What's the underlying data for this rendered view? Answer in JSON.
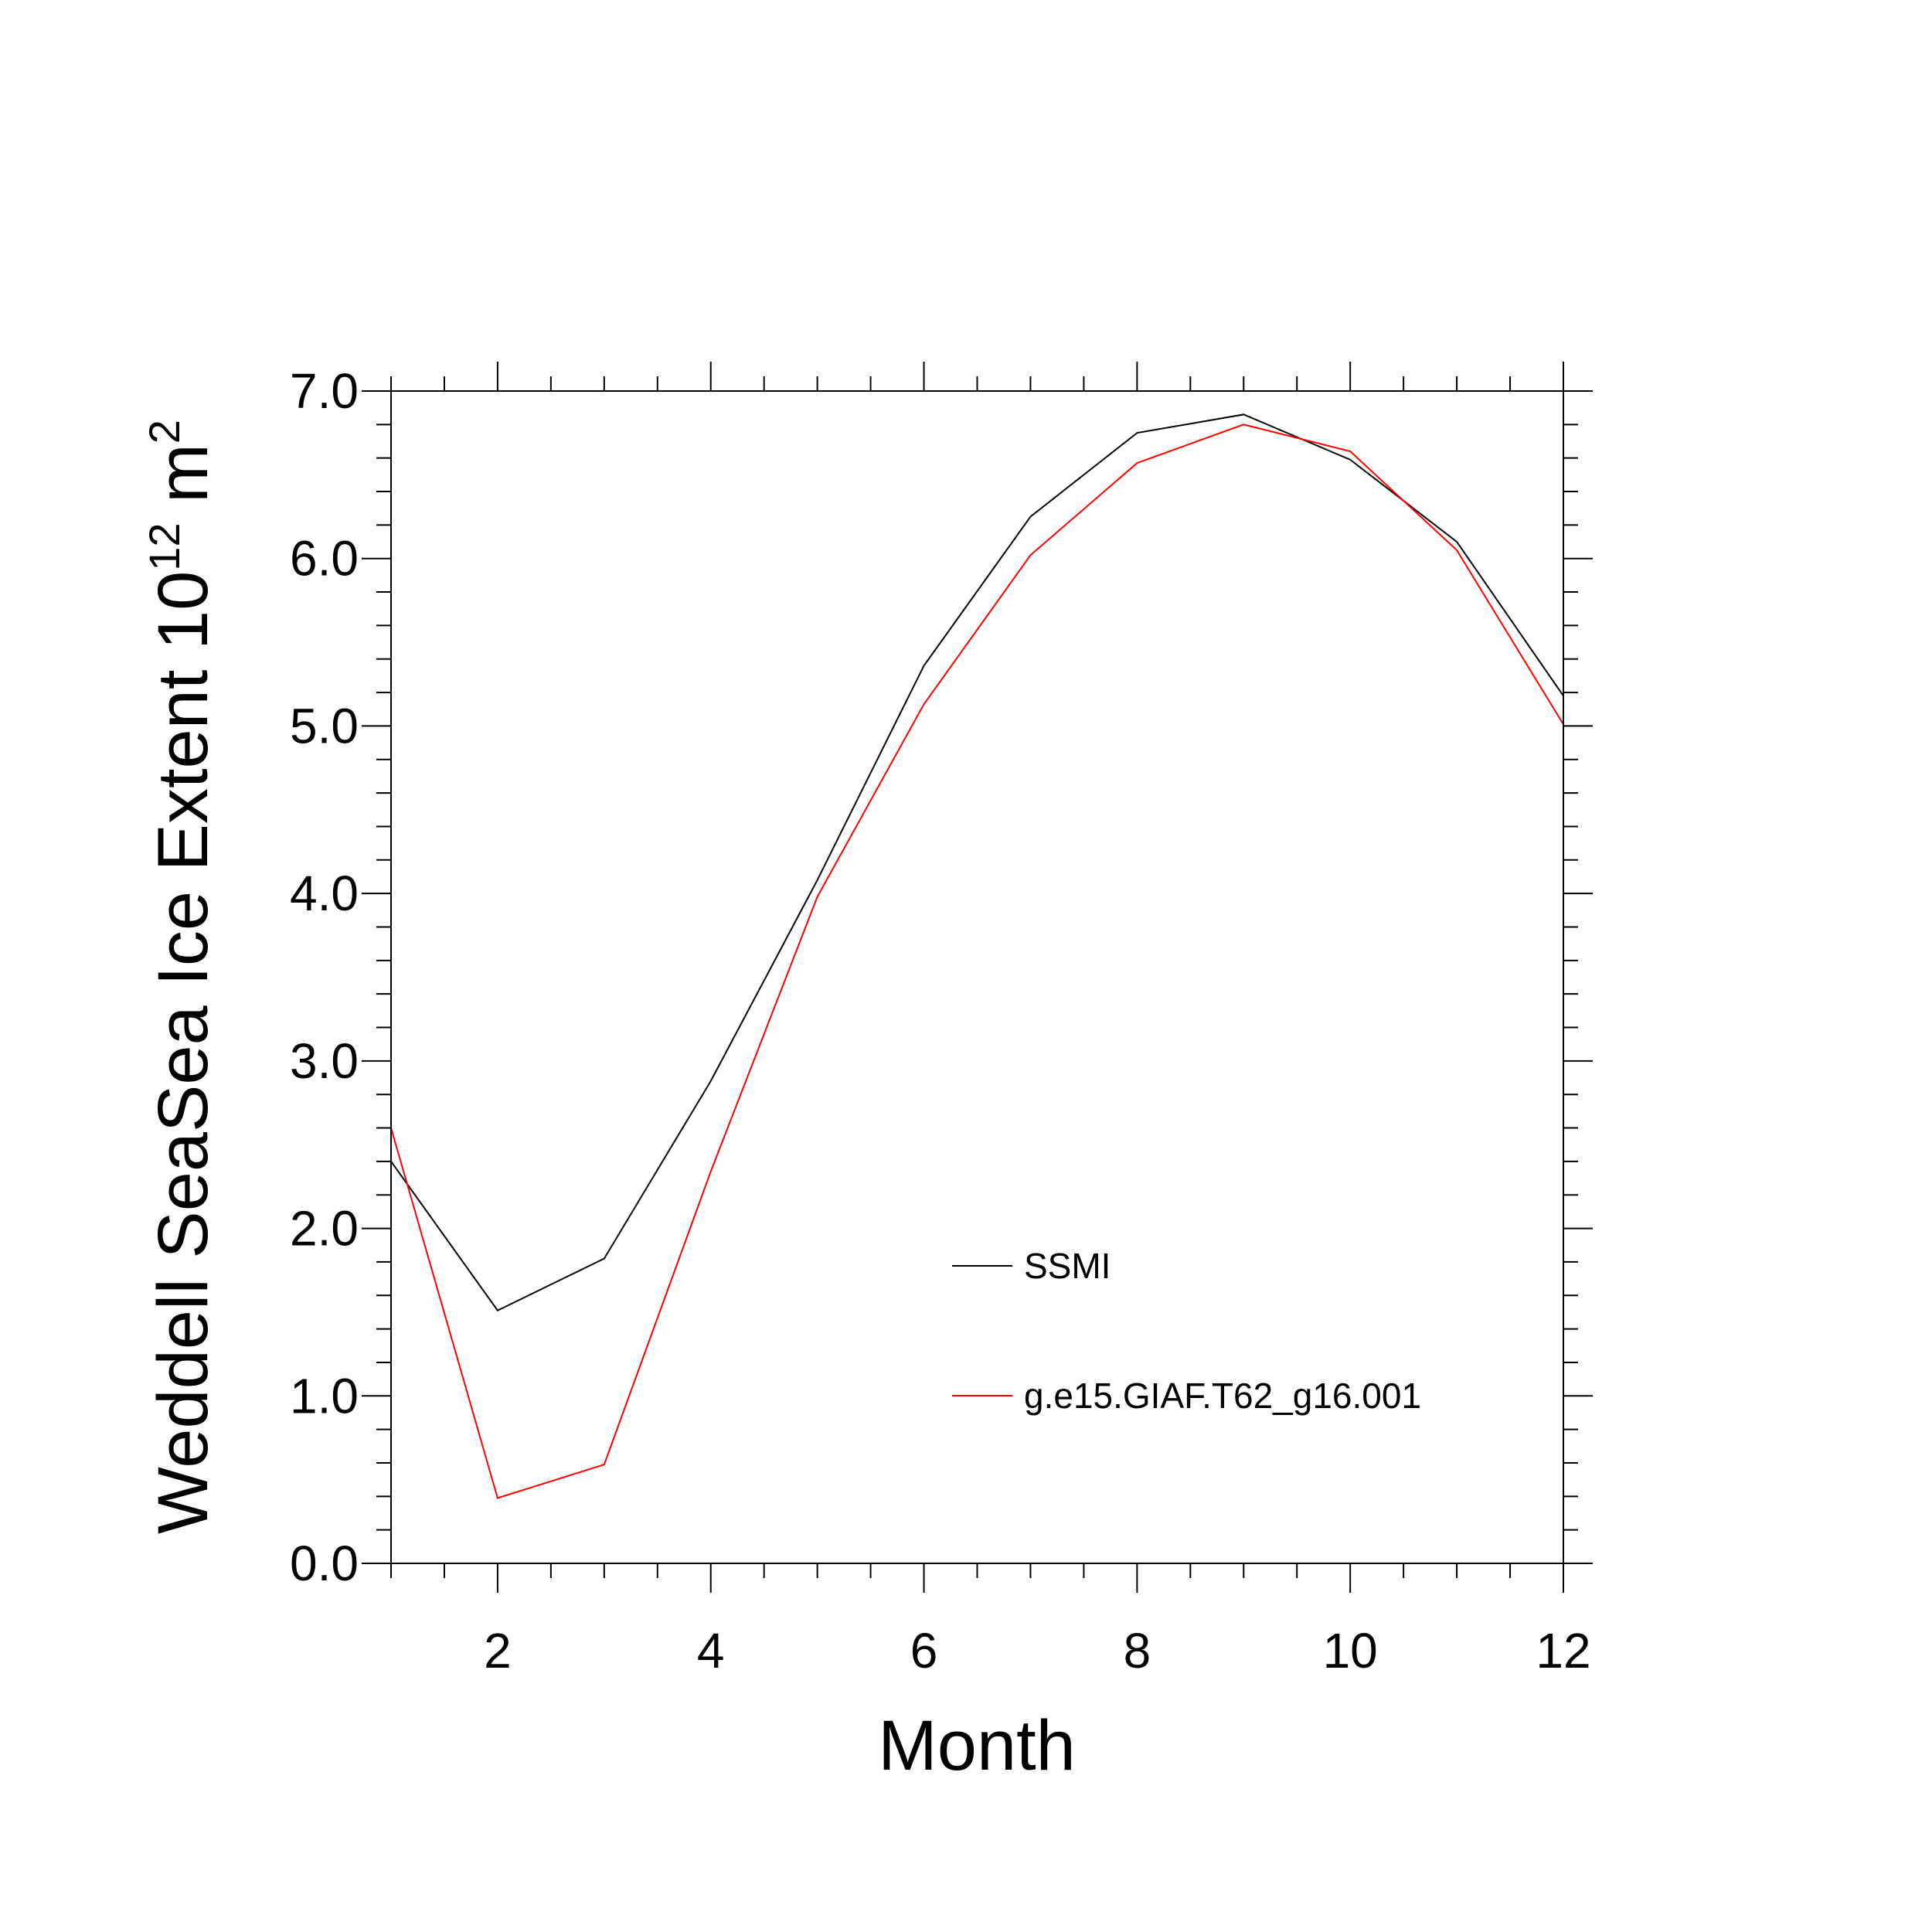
{
  "chart_data": {
    "type": "line",
    "title": "",
    "xlabel": "Month",
    "ylabel": {
      "main": "Weddell SeaSea Ice Extent 10",
      "superscript_exp": "12",
      "unit": " m",
      "superscript_unit": "2"
    },
    "xlim": [
      1,
      12
    ],
    "ylim": [
      0.0,
      7.0
    ],
    "xticks": [
      2,
      4,
      6,
      8,
      10,
      12
    ],
    "xtick_labels": [
      "2",
      "4",
      "6",
      "8",
      "10",
      "12"
    ],
    "yticks": [
      0,
      1,
      2,
      3,
      4,
      5,
      6,
      7
    ],
    "ytick_labels": [
      "0.0",
      "1.0",
      "2.0",
      "3.0",
      "4.0",
      "5.0",
      "6.0",
      "7.0"
    ],
    "grid": false,
    "legend_position": "lower-right inside plot",
    "x": [
      1,
      2,
      3,
      4,
      5,
      6,
      7,
      8,
      9,
      10,
      11,
      12
    ],
    "series": [
      {
        "name": "SSMI",
        "color": "#000000",
        "values": [
          2.4,
          1.51,
          1.82,
          2.88,
          4.08,
          5.36,
          6.25,
          6.75,
          6.86,
          6.59,
          6.1,
          5.18
        ]
      },
      {
        "name": "g.e15.GIAF.T62_g16.001",
        "color": "#ff0000",
        "values": [
          2.6,
          0.39,
          0.59,
          2.34,
          3.98,
          5.13,
          6.02,
          6.57,
          6.8,
          6.64,
          6.05,
          5.01
        ]
      }
    ]
  }
}
